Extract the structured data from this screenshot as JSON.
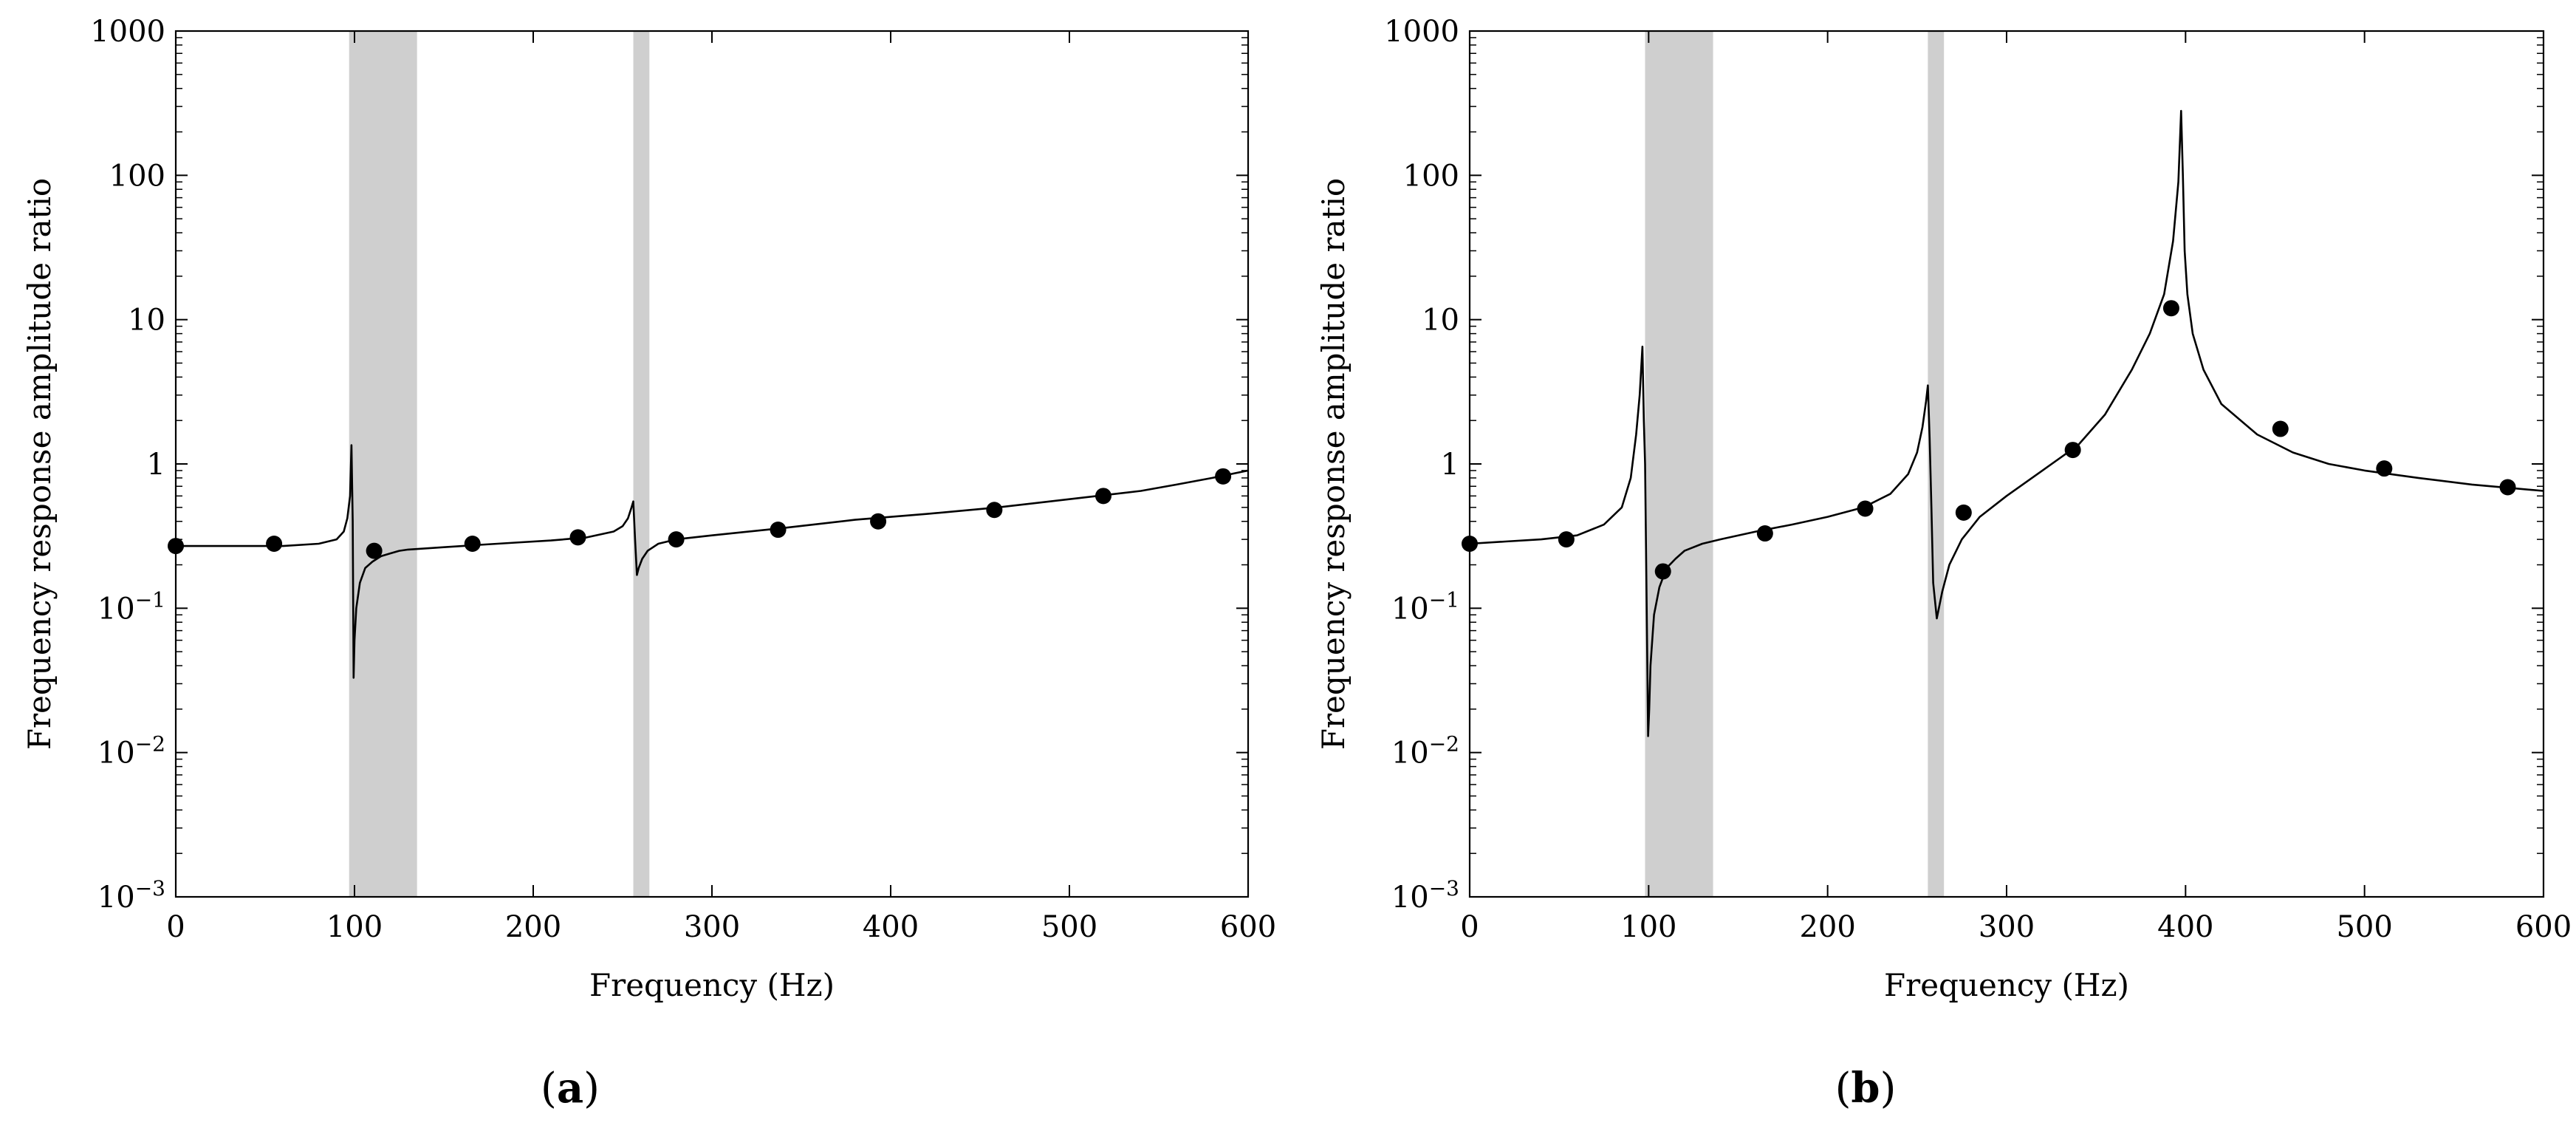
{
  "chart_data": [
    {
      "type": "line",
      "panel_label": "(a)",
      "xlabel": "Frequency (Hz)",
      "ylabel": "Frequency response amplitude ratio",
      "xlim": [
        0,
        600
      ],
      "ylim": [
        0.001,
        1000
      ],
      "yscale": "log",
      "xticks": [
        "0",
        "100",
        "200",
        "300",
        "400",
        "500",
        "600"
      ],
      "yticks": [
        {
          "base": "10",
          "exp": "−3"
        },
        {
          "base": "10",
          "exp": "−2"
        },
        {
          "base": "10",
          "exp": "−1"
        },
        {
          "base": "1",
          "exp": ""
        },
        {
          "base": "10",
          "exp": ""
        },
        {
          "base": "100",
          "exp": ""
        },
        {
          "base": "1000",
          "exp": ""
        }
      ],
      "shaded_bands": [
        [
          97,
          135
        ],
        [
          256,
          265
        ]
      ],
      "curve": {
        "x": [
          0,
          20,
          40,
          60,
          80,
          90,
          94,
          96,
          97.5,
          98.3,
          99,
          99.5,
          100,
          101,
          103,
          106,
          110,
          115,
          120,
          125,
          130,
          140,
          150,
          170,
          190,
          210,
          230,
          245,
          250,
          253,
          255,
          256,
          257,
          258,
          259,
          261,
          264,
          270,
          280,
          300,
          340,
          380,
          420,
          460,
          500,
          540,
          560,
          580,
          600
        ],
        "y": [
          0.27,
          0.27,
          0.27,
          0.27,
          0.28,
          0.3,
          0.34,
          0.42,
          0.6,
          1.35,
          0.4,
          0.033,
          0.06,
          0.1,
          0.15,
          0.19,
          0.21,
          0.23,
          0.24,
          0.25,
          0.255,
          0.26,
          0.265,
          0.275,
          0.285,
          0.295,
          0.31,
          0.34,
          0.37,
          0.42,
          0.5,
          0.55,
          0.3,
          0.17,
          0.19,
          0.22,
          0.25,
          0.28,
          0.3,
          0.32,
          0.36,
          0.41,
          0.45,
          0.5,
          0.57,
          0.65,
          0.72,
          0.8,
          0.9
        ]
      },
      "markers": {
        "x": [
          0,
          55,
          111,
          166,
          225,
          280,
          337,
          393,
          458,
          519,
          586
        ],
        "y": [
          0.27,
          0.28,
          0.25,
          0.28,
          0.31,
          0.3,
          0.35,
          0.4,
          0.48,
          0.6,
          0.82
        ]
      }
    },
    {
      "type": "line",
      "panel_label": "(b)",
      "xlabel": "Frequency (Hz)",
      "ylabel": "Frequency response amplitude ratio",
      "xlim": [
        0,
        600
      ],
      "ylim": [
        0.001,
        1000
      ],
      "yscale": "log",
      "xticks": [
        "0",
        "100",
        "200",
        "300",
        "400",
        "500",
        "600"
      ],
      "yticks": [
        {
          "base": "10",
          "exp": "−3"
        },
        {
          "base": "10",
          "exp": "−2"
        },
        {
          "base": "10",
          "exp": "−1"
        },
        {
          "base": "1",
          "exp": ""
        },
        {
          "base": "10",
          "exp": ""
        },
        {
          "base": "100",
          "exp": ""
        },
        {
          "base": "1000",
          "exp": ""
        }
      ],
      "shaded_bands": [
        [
          98,
          136
        ],
        [
          256,
          265
        ]
      ],
      "curve": {
        "x": [
          0,
          20,
          40,
          60,
          75,
          85,
          90,
          93,
          95,
          96.5,
          97.3,
          98,
          99,
          99.7,
          100.3,
          101,
          103,
          106,
          110,
          115,
          120,
          130,
          140,
          160,
          180,
          200,
          220,
          235,
          245,
          250,
          253,
          255,
          256,
          257,
          258,
          259,
          261,
          264,
          268,
          275,
          285,
          300,
          320,
          340,
          355,
          370,
          380,
          388,
          393,
          396,
          397.5,
          398.5,
          399.5,
          401,
          404,
          410,
          420,
          440,
          460,
          480,
          500,
          530,
          560,
          600
        ],
        "y": [
          0.28,
          0.29,
          0.3,
          0.32,
          0.38,
          0.5,
          0.8,
          1.6,
          3.0,
          6.5,
          2.0,
          1.0,
          0.08,
          0.013,
          0.02,
          0.04,
          0.09,
          0.14,
          0.19,
          0.22,
          0.25,
          0.28,
          0.3,
          0.34,
          0.38,
          0.43,
          0.5,
          0.62,
          0.85,
          1.2,
          1.8,
          2.7,
          3.5,
          1.5,
          0.5,
          0.15,
          0.085,
          0.13,
          0.2,
          0.3,
          0.43,
          0.6,
          0.9,
          1.35,
          2.2,
          4.5,
          8.0,
          15.0,
          35.0,
          90.0,
          280.0,
          100.0,
          30.0,
          15.0,
          8.0,
          4.5,
          2.6,
          1.6,
          1.2,
          1.0,
          0.9,
          0.8,
          0.72,
          0.65
        ]
      },
      "markers": {
        "x": [
          0,
          54,
          108,
          165,
          221,
          276,
          337,
          392,
          453,
          511,
          580
        ],
        "y": [
          0.28,
          0.3,
          0.18,
          0.33,
          0.49,
          0.46,
          1.25,
          12.0,
          1.75,
          0.93,
          0.69
        ]
      }
    }
  ]
}
